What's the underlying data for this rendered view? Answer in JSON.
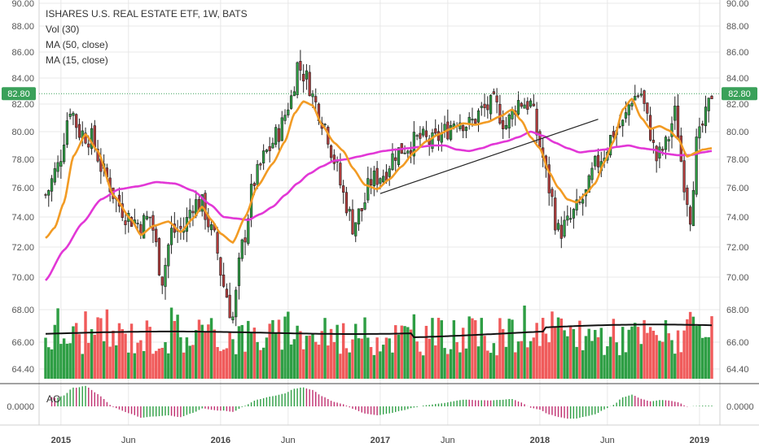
{
  "legend": {
    "title": "ISHARES U.S. REAL ESTATE ETF, 1W, BATS",
    "vol": "Vol (30)",
    "ma50": "MA (50, close)",
    "ma15": "MA (15, close)"
  },
  "ao_label": "AO",
  "chart_data": {
    "type": "candlestick",
    "symbol": "ISHARES U.S. REAL ESTATE ETF",
    "interval": "1W",
    "exchange": "BATS",
    "last_price_label": "82.80",
    "last_price": 82.8,
    "y_range": [
      63.6,
      90.0
    ],
    "y_ticks": [
      "90.00",
      "88.00",
      "86.00",
      "84.00",
      "82.00",
      "80.00",
      "78.00",
      "76.00",
      "74.00",
      "72.00",
      "70.00",
      "68.00",
      "66.00",
      "64.40"
    ],
    "x_range_weeks": [
      0,
      217
    ],
    "x_ticks": [
      {
        "label": "2015",
        "week": 5
      },
      {
        "label": "Jun",
        "week": 27
      },
      {
        "label": "2016",
        "week": 57
      },
      {
        "label": "Jun",
        "week": 79
      },
      {
        "label": "2017",
        "week": 109
      },
      {
        "label": "Jun",
        "week": 131
      },
      {
        "label": "2018",
        "week": 161
      },
      {
        "label": "Jun",
        "week": 183
      },
      {
        "label": "2019",
        "week": 213
      }
    ],
    "price_anchors": [
      [
        0,
        75.5
      ],
      [
        4,
        77.5
      ],
      [
        8,
        81.8
      ],
      [
        11,
        80.0
      ],
      [
        15,
        79.5
      ],
      [
        19,
        77.0
      ],
      [
        24,
        74.8
      ],
      [
        27,
        74.0
      ],
      [
        31,
        73.5
      ],
      [
        34,
        74.0
      ],
      [
        38,
        70.0
      ],
      [
        41,
        73.0
      ],
      [
        45,
        73.2
      ],
      [
        48,
        75.0
      ],
      [
        51,
        74.8
      ],
      [
        55,
        72.5
      ],
      [
        58,
        69.5
      ],
      [
        61,
        67.5
      ],
      [
        64,
        72.0
      ],
      [
        68,
        76.5
      ],
      [
        72,
        78.5
      ],
      [
        76,
        80.0
      ],
      [
        80,
        82.5
      ],
      [
        82,
        85.0
      ],
      [
        85,
        84.0
      ],
      [
        88,
        82.0
      ],
      [
        91,
        80.5
      ],
      [
        94,
        78.0
      ],
      [
        97,
        75.5
      ],
      [
        100,
        73.5
      ],
      [
        103,
        74.5
      ],
      [
        106,
        76.5
      ],
      [
        110,
        77.0
      ],
      [
        114,
        78.5
      ],
      [
        118,
        79.0
      ],
      [
        122,
        79.5
      ],
      [
        126,
        79.2
      ],
      [
        130,
        80.0
      ],
      [
        134,
        81.0
      ],
      [
        138,
        80.5
      ],
      [
        142,
        81.5
      ],
      [
        146,
        82.0
      ],
      [
        150,
        80.5
      ],
      [
        154,
        82.2
      ],
      [
        158,
        82.0
      ],
      [
        161,
        79.0
      ],
      [
        164,
        76.0
      ],
      [
        167,
        73.0
      ],
      [
        170,
        73.5
      ],
      [
        173,
        74.5
      ],
      [
        176,
        75.5
      ],
      [
        179,
        77.5
      ],
      [
        182,
        78.5
      ],
      [
        185,
        80.0
      ],
      [
        188,
        80.5
      ],
      [
        191,
        82.5
      ],
      [
        194,
        82.8
      ],
      [
        196,
        80.8
      ],
      [
        199,
        78.0
      ],
      [
        202,
        79.0
      ],
      [
        205,
        81.3
      ],
      [
        208,
        76.5
      ],
      [
        210,
        74.2
      ],
      [
        212,
        79.0
      ],
      [
        215,
        81.0
      ],
      [
        217,
        82.8
      ]
    ],
    "ma15_anchors": [
      [
        0,
        72.6
      ],
      [
        3,
        73.3
      ],
      [
        6,
        75.0
      ],
      [
        9,
        78.2
      ],
      [
        13,
        79.8
      ],
      [
        17,
        78.6
      ],
      [
        22,
        75.5
      ],
      [
        28,
        73.8
      ],
      [
        31,
        72.8
      ],
      [
        35,
        73.4
      ],
      [
        40,
        73.7
      ],
      [
        44,
        73.0
      ],
      [
        48,
        73.9
      ],
      [
        51,
        74.7
      ],
      [
        54,
        73.8
      ],
      [
        57,
        72.9
      ],
      [
        61,
        72.3
      ],
      [
        65,
        74.0
      ],
      [
        69,
        76.1
      ],
      [
        74,
        77.7
      ],
      [
        78,
        79.3
      ],
      [
        81,
        81.3
      ],
      [
        84,
        82.2
      ],
      [
        87,
        81.9
      ],
      [
        90,
        80.5
      ],
      [
        94,
        79.2
      ],
      [
        97,
        78.6
      ],
      [
        100,
        77.4
      ],
      [
        104,
        76.2
      ],
      [
        108,
        75.9
      ],
      [
        112,
        76.6
      ],
      [
        116,
        77.5
      ],
      [
        120,
        78.5
      ],
      [
        124,
        79.3
      ],
      [
        128,
        79.8
      ],
      [
        132,
        80.2
      ],
      [
        136,
        80.6
      ],
      [
        140,
        80.5
      ],
      [
        144,
        80.7
      ],
      [
        148,
        81.1
      ],
      [
        152,
        81.6
      ],
      [
        155,
        80.8
      ],
      [
        158,
        79.6
      ],
      [
        161,
        78.8
      ],
      [
        164,
        77.1
      ],
      [
        167,
        76.0
      ],
      [
        170,
        75.2
      ],
      [
        173,
        75.0
      ],
      [
        176,
        75.6
      ],
      [
        179,
        76.3
      ],
      [
        182,
        77.8
      ],
      [
        185,
        79.3
      ],
      [
        188,
        81.6
      ],
      [
        191,
        82.4
      ],
      [
        194,
        81.0
      ],
      [
        197,
        80.2
      ],
      [
        200,
        80.4
      ],
      [
        203,
        80.1
      ],
      [
        206,
        79.5
      ],
      [
        209,
        78.2
      ],
      [
        212,
        78.5
      ],
      [
        214,
        78.7
      ],
      [
        217,
        78.8
      ]
    ],
    "ma50_anchors": [
      [
        0,
        69.8
      ],
      [
        6,
        71.8
      ],
      [
        12,
        73.6
      ],
      [
        18,
        75.2
      ],
      [
        24,
        75.9
      ],
      [
        30,
        76.1
      ],
      [
        36,
        76.4
      ],
      [
        42,
        76.3
      ],
      [
        48,
        75.8
      ],
      [
        54,
        74.8
      ],
      [
        58,
        74.0
      ],
      [
        62,
        73.9
      ],
      [
        66,
        73.8
      ],
      [
        70,
        74.2
      ],
      [
        74,
        74.7
      ],
      [
        78,
        75.5
      ],
      [
        82,
        76.3
      ],
      [
        86,
        77.0
      ],
      [
        90,
        77.5
      ],
      [
        94,
        77.9
      ],
      [
        98,
        78.0
      ],
      [
        102,
        78.2
      ],
      [
        106,
        78.4
      ],
      [
        110,
        78.6
      ],
      [
        114,
        78.7
      ],
      [
        118,
        78.8
      ],
      [
        122,
        78.9
      ],
      [
        126,
        79.0
      ],
      [
        130,
        79.0
      ],
      [
        134,
        78.7
      ],
      [
        138,
        78.6
      ],
      [
        142,
        78.8
      ],
      [
        146,
        79.1
      ],
      [
        150,
        79.3
      ],
      [
        154,
        79.6
      ],
      [
        158,
        80.0
      ],
      [
        162,
        79.7
      ],
      [
        166,
        79.2
      ],
      [
        170,
        78.8
      ],
      [
        174,
        78.5
      ],
      [
        178,
        78.6
      ],
      [
        182,
        78.7
      ],
      [
        186,
        78.9
      ],
      [
        190,
        79.0
      ],
      [
        194,
        78.8
      ],
      [
        198,
        78.7
      ],
      [
        202,
        78.4
      ],
      [
        206,
        78.3
      ],
      [
        210,
        78.3
      ],
      [
        214,
        78.5
      ],
      [
        217,
        78.6
      ]
    ],
    "trendline": {
      "from": {
        "week": 109,
        "price": 75.6
      },
      "to": {
        "week": 180,
        "price": 80.9
      }
    },
    "volume": {
      "y_axis_range": [
        64.0,
        68.6
      ],
      "avg_line_level": [
        66.5,
        67.1
      ],
      "up_color": "#2e9e44",
      "down_color": "#f06060"
    },
    "ao": {
      "zero_label": "0.0000",
      "up_color": "#2e9e44",
      "down_color": "#c03070"
    }
  },
  "colors": {
    "ma15": "#f29b24",
    "ma50": "#e237d6",
    "trendline": "#222222",
    "price_badge": "#3aa15a",
    "dotted_price": "#3aa15a",
    "vol_avg": "#111111",
    "axis_text": "#555555",
    "grid": "#e8e8e8",
    "up": "#2e9e44",
    "down": "#f05b5b"
  }
}
